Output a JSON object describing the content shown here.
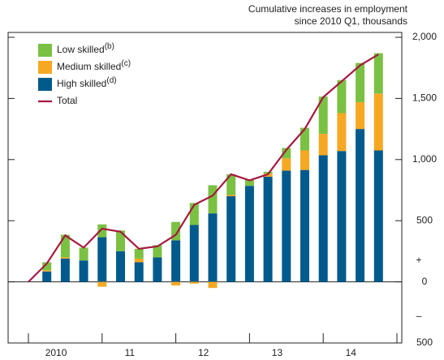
{
  "chart_data": {
    "type": "stacked-bar-line",
    "ylabel": [
      "Cumulative increases in employment",
      "since 2010 Q1, thousands"
    ],
    "categories": [
      null,
      null,
      null,
      null,
      null,
      null,
      null,
      null,
      null,
      null,
      null,
      null,
      null,
      null,
      null,
      null,
      null,
      null,
      null,
      null
    ],
    "x_group_labels": [
      "2010",
      "11",
      "12",
      "13",
      "14"
    ],
    "group_size": 4,
    "series": [
      {
        "name": "Low skilled",
        "note": "(b)",
        "color": "#7ac143",
        "kind": "bar",
        "values": [
          null,
          65,
          185,
          105,
          105,
          170,
          80,
          100,
          150,
          180,
          230,
          170,
          50,
          15,
          85,
          185,
          305,
          270,
          320,
          330
        ]
      },
      {
        "name": "Medium skilled",
        "note": "(c)",
        "color": "#f7a823",
        "kind": "bar",
        "values": [
          null,
          10,
          10,
          0,
          -40,
          0,
          30,
          0,
          -30,
          -15,
          -50,
          10,
          0,
          25,
          100,
          160,
          175,
          310,
          220,
          465
        ]
      },
      {
        "name": "High skilled",
        "note": "(d)",
        "color": "#005a8c",
        "kind": "bar",
        "values": [
          null,
          85,
          190,
          175,
          365,
          250,
          160,
          200,
          340,
          465,
          560,
          700,
          785,
          860,
          910,
          915,
          1035,
          1070,
          1250,
          1075
        ]
      },
      {
        "name": "Total",
        "color": "#a6193f",
        "kind": "line",
        "values": [
          0,
          150,
          380,
          280,
          435,
          410,
          270,
          290,
          385,
          630,
          705,
          880,
          830,
          880,
          1080,
          1250,
          1510,
          1640,
          1770,
          1860
        ]
      }
    ],
    "sign_labels": [
      "+",
      "–"
    ],
    "ylim": [
      -500,
      2000
    ],
    "yticks": [
      {
        "value": -500,
        "label": "500"
      },
      0,
      500,
      {
        "value": 1000,
        "label": "1,000"
      },
      {
        "value": 1500,
        "label": "1,500"
      },
      {
        "value": 2000,
        "label": "2,000"
      }
    ],
    "legend": "upper left"
  }
}
